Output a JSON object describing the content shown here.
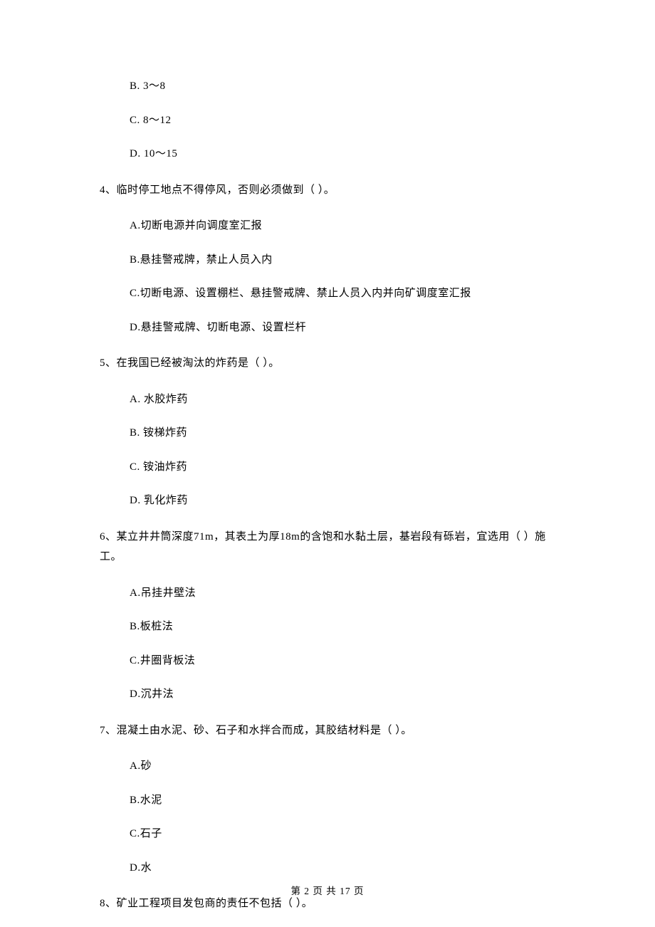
{
  "options_pre": [
    "B.  3～8",
    "C.  8～12",
    "D.  10～15"
  ],
  "q4": {
    "question": "4、临时停工地点不得停风，否则必须做到（     ）。",
    "options": [
      "A.切断电源并向调度室汇报",
      "B.悬挂警戒牌，禁止人员入内",
      "C.切断电源、设置棚栏、悬挂警戒牌、禁止人员入内并向矿调度室汇报",
      "D.悬挂警戒牌、切断电源、设置栏杆"
    ]
  },
  "q5": {
    "question": "5、在我国已经被淘汰的炸药是（    ）。",
    "options": [
      "A.  水胶炸药",
      "B.  铵梯炸药",
      "C.  铵油炸药",
      "D.  乳化炸药"
    ]
  },
  "q6": {
    "question": "6、某立井井筒深度71m，其表土为厚18m的含饱和水黏土层，基岩段有砾岩，宜选用（  ）施工。",
    "options": [
      "A.吊挂井壁法",
      "B.板桩法",
      "C.井圈背板法",
      "D.沉井法"
    ]
  },
  "q7": {
    "question": "7、混凝土由水泥、砂、石子和水拌合而成，其胶结材料是（    ）。",
    "options": [
      "A.砂",
      "B.水泥",
      "C.石子",
      "D.水"
    ]
  },
  "q8": {
    "question": "8、矿业工程项目发包商的责任不包括（    ）。"
  },
  "footer": "第 2 页 共 17 页"
}
